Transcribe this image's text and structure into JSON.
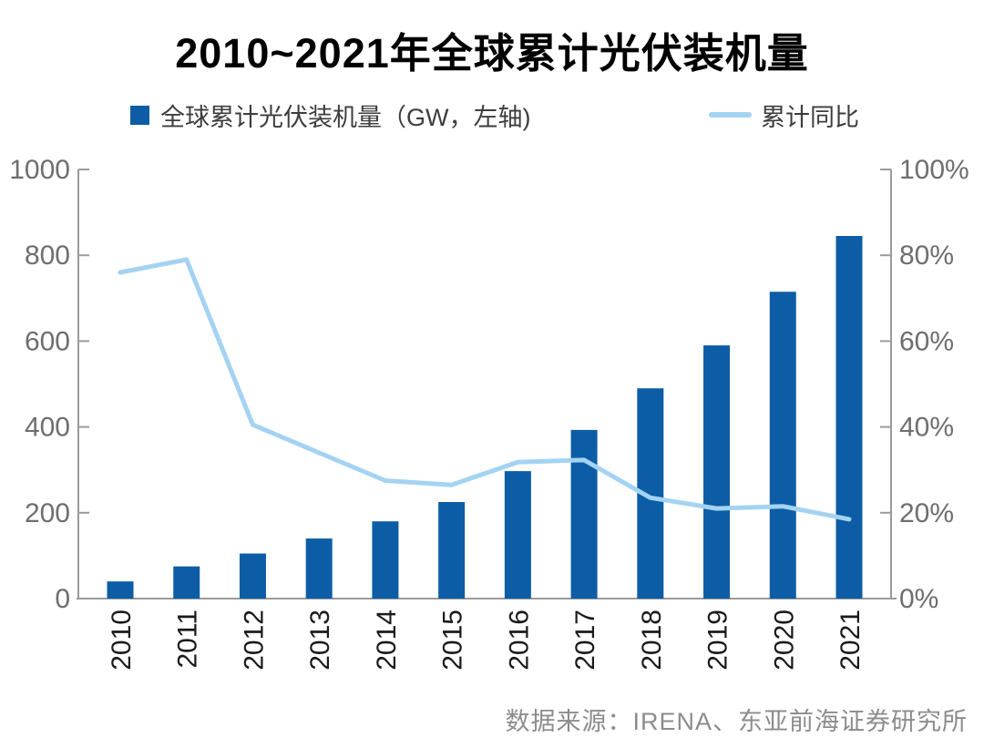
{
  "title": "2010~2021年全球累计光伏装机量",
  "legend": {
    "bar_label": "全球累计光伏装机量（GW，左轴)",
    "line_label": "累计同比"
  },
  "source": "数据来源：IRENA、东亚前海证券研究所",
  "colors": {
    "bar": "#0C5DA5",
    "line": "#A4D3F2",
    "axis": "#9B9B9B",
    "tick_label": "#6E6E6E",
    "year_label": "#1A1A1A",
    "title": "#000000",
    "source": "#8C8C8C"
  },
  "chart_data": {
    "type": "bar",
    "combo": "bar+line",
    "title": "2010~2021年全球累计光伏装机量",
    "categories": [
      "2010",
      "2011",
      "2012",
      "2013",
      "2014",
      "2015",
      "2016",
      "2017",
      "2018",
      "2019",
      "2020",
      "2021"
    ],
    "series": [
      {
        "name": "全球累计光伏装机量（GW，左轴)",
        "type": "bar",
        "axis": "left",
        "unit": "GW",
        "values": [
          40,
          75,
          105,
          140,
          180,
          225,
          297,
          393,
          490,
          590,
          715,
          845
        ]
      },
      {
        "name": "累计同比",
        "type": "line",
        "axis": "right",
        "unit": "%",
        "values": [
          76,
          79,
          40.5,
          34,
          27.5,
          26.5,
          31.8,
          32.3,
          23.5,
          21,
          21.5,
          18.5
        ]
      }
    ],
    "left_axis": {
      "min": 0,
      "max": 1000,
      "ticks": [
        "0",
        "200",
        "400",
        "600",
        "800",
        "1000"
      ]
    },
    "right_axis": {
      "min": 0,
      "max": 100,
      "ticks": [
        "0%",
        "20%",
        "40%",
        "60%",
        "80%",
        "100%"
      ]
    },
    "grid": false,
    "legend_position": "top",
    "xlabel": "",
    "ylabel_left": "GW",
    "ylabel_right": "%"
  }
}
